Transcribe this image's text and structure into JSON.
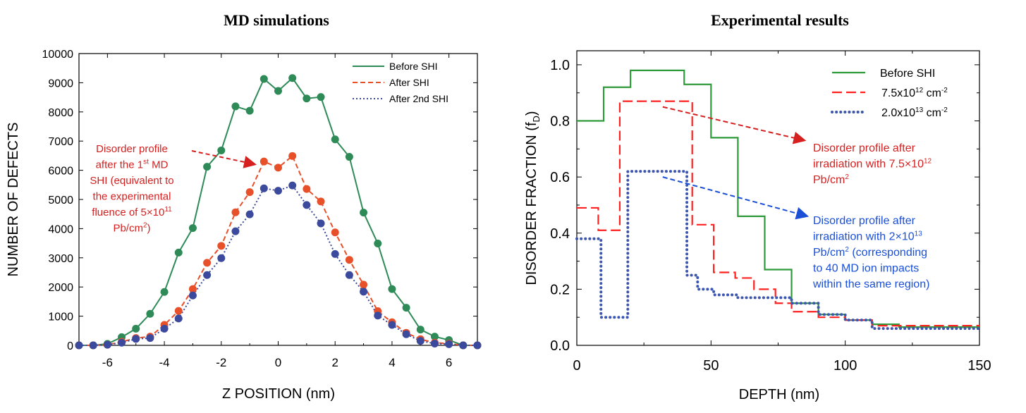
{
  "chart_data": [
    {
      "type": "line",
      "title": "MD simulations",
      "xlabel": "Z POSITION (nm)",
      "ylabel": "NUMBER OF DEFECTS",
      "xlim": [
        -7,
        7
      ],
      "ylim": [
        0,
        10000
      ],
      "xticks": [
        -6,
        -4,
        -2,
        0,
        2,
        4,
        6
      ],
      "yticks": [
        0,
        1000,
        2000,
        3000,
        4000,
        5000,
        6000,
        7000,
        8000,
        9000,
        10000
      ],
      "legend_position": "top-right",
      "series": [
        {
          "name": "Before SHI",
          "color": "#2e8b57",
          "style": "solid",
          "x": [
            -7,
            -6.5,
            -6,
            -5.5,
            -5,
            -4.5,
            -4,
            -3.5,
            -3,
            -2.5,
            -2,
            -1.5,
            -1,
            -0.5,
            0,
            0.5,
            1,
            1.5,
            2,
            2.5,
            3,
            3.5,
            4,
            4.5,
            5,
            5.5,
            6,
            6.5,
            7
          ],
          "y": [
            0,
            0,
            50,
            280,
            570,
            1080,
            1830,
            3180,
            4020,
            6120,
            6680,
            8190,
            8040,
            9130,
            8720,
            9160,
            8460,
            8510,
            7060,
            6460,
            4550,
            3490,
            1930,
            1290,
            540,
            300,
            180,
            0,
            0
          ]
        },
        {
          "name": "After SHI",
          "color": "#e8502a",
          "style": "dashed",
          "x": [
            -7,
            -6.5,
            -6,
            -5.5,
            -5,
            -4.5,
            -4,
            -3.5,
            -3,
            -2.5,
            -2,
            -1.5,
            -1,
            -0.5,
            0,
            0.5,
            1,
            1.5,
            2,
            2.5,
            3,
            3.5,
            4,
            4.5,
            5,
            5.5,
            6,
            6.5,
            7
          ],
          "y": [
            0,
            0,
            20,
            120,
            250,
            300,
            700,
            1180,
            1930,
            2830,
            3410,
            4560,
            5250,
            6300,
            6090,
            6490,
            5360,
            4930,
            3870,
            2930,
            2080,
            1170,
            790,
            430,
            210,
            90,
            60,
            0,
            0
          ]
        },
        {
          "name": "After 2nd SHI",
          "color": "#3b4a9c",
          "style": "dotted",
          "x": [
            -7,
            -6.5,
            -6,
            -5.5,
            -5,
            -4.5,
            -4,
            -3.5,
            -3,
            -2.5,
            -2,
            -1.5,
            -1,
            -0.5,
            0,
            0.5,
            1,
            1.5,
            2,
            2.5,
            3,
            3.5,
            4,
            4.5,
            5,
            5.5,
            6,
            6.5,
            7
          ],
          "y": [
            0,
            0,
            20,
            90,
            220,
            250,
            570,
            920,
            1710,
            2410,
            2990,
            3910,
            4490,
            5380,
            5300,
            5480,
            4810,
            4180,
            3130,
            2410,
            1840,
            1020,
            700,
            380,
            150,
            60,
            40,
            0,
            0
          ]
        }
      ],
      "annotation": {
        "lines": [
          [
            "Disorder profile"
          ],
          [
            "after the 1",
            "st",
            "  MD"
          ],
          [
            "SHI (equivalent to"
          ],
          [
            "the experimental"
          ],
          [
            "fluence of 5×10",
            "11"
          ],
          [
            "Pb/cm",
            "2",
            ")"
          ]
        ],
        "color": "#d62020",
        "arrow_target": [
          -0.8,
          6200
        ]
      }
    },
    {
      "type": "line",
      "subtype": "step",
      "title": "Experimental  results",
      "xlabel": "DEPTH  (nm)",
      "ylabel": "DISORDER FRACTION (f",
      "ylabel_sub": "D",
      "ylabel_end": ")",
      "xlim": [
        0,
        150
      ],
      "ylim": [
        0,
        1.05
      ],
      "xticks": [
        0,
        50,
        100,
        150
      ],
      "yticks": [
        0.0,
        0.2,
        0.4,
        0.6,
        0.8,
        1.0
      ],
      "ytick_labels": [
        "0.0",
        "0.2",
        "0.4",
        "0.6",
        "0.8",
        "1.0"
      ],
      "legend_position": "top-right",
      "series": [
        {
          "name": "Before SHI",
          "color": "#2e9a3a",
          "style": "solid",
          "edges": [
            0,
            10,
            20,
            40,
            50,
            60,
            70,
            80,
            90,
            100,
            110,
            120,
            150
          ],
          "values": [
            0.8,
            0.92,
            0.98,
            0.93,
            0.74,
            0.46,
            0.27,
            0.15,
            0.11,
            0.09,
            0.075,
            0.065
          ]
        },
        {
          "name": "7.5x10",
          "name_sup": "12",
          "name_unit": " cm",
          "name_unit_sup": "-2",
          "color": "#ff2020",
          "style": "dashed",
          "edges": [
            0,
            8,
            16,
            43,
            51,
            59,
            66,
            74,
            80,
            90,
            100,
            110,
            120,
            150
          ],
          "values": [
            0.49,
            0.41,
            0.87,
            0.43,
            0.26,
            0.24,
            0.2,
            0.15,
            0.12,
            0.1,
            0.09,
            0.07,
            0.07
          ]
        },
        {
          "name": "2.0x10",
          "name_sup": "13",
          "name_unit": " cm",
          "name_unit_sup": "-2",
          "color": "#3b55b0",
          "style": "dotted",
          "edges": [
            0,
            9,
            19,
            41,
            45,
            51,
            60,
            80,
            90,
            100,
            110,
            150
          ],
          "values": [
            0.38,
            0.1,
            0.62,
            0.25,
            0.2,
            0.18,
            0.17,
            0.15,
            0.11,
            0.09,
            0.06
          ]
        }
      ],
      "annotations": [
        {
          "lines": [
            [
              "Disorder      profile      after"
            ],
            [
              "irradiation  with  7.5×10",
              "12"
            ],
            [
              "Pb/cm",
              "2"
            ]
          ],
          "color": "#d62020",
          "arrow_from": [
            32,
            0.85
          ],
          "arrow_to": [
            85,
            0.73
          ]
        },
        {
          "lines": [
            [
              "Disorder  profile  after"
            ],
            [
              "irradiation  with  2×10",
              "13"
            ],
            [
              "Pb/cm",
              "2",
              "  (corresponding"
            ],
            [
              "to  40  MD  ion  impacts"
            ],
            [
              "within the same region)"
            ]
          ],
          "color": "#1a4fd6",
          "arrow_from": [
            32,
            0.6
          ],
          "arrow_to": [
            86,
            0.46
          ]
        }
      ]
    }
  ]
}
